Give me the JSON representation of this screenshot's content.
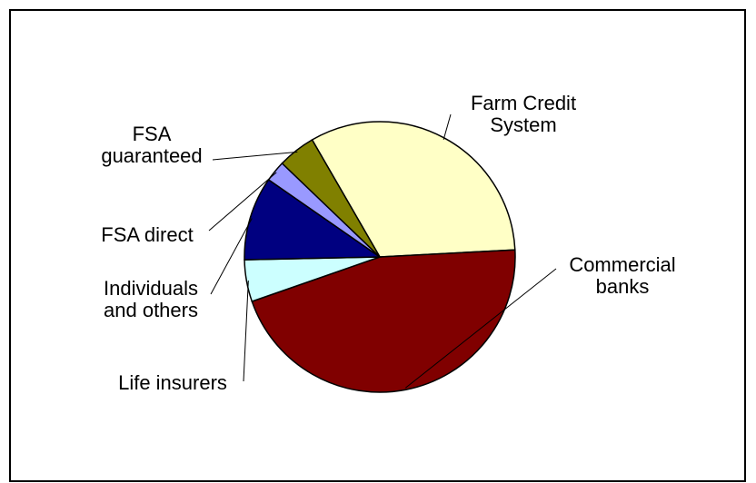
{
  "chart_data": {
    "type": "pie",
    "title": "",
    "slices": [
      {
        "label_lines": [
          "Farm Credit",
          "System"
        ],
        "value": 32.5,
        "color": "#ffffc6"
      },
      {
        "label_lines": [
          "Commercial",
          "banks"
        ],
        "value": 45.5,
        "color": "#800000"
      },
      {
        "label_lines": [
          "Life insurers"
        ],
        "value": 5.0,
        "color": "#ccffff"
      },
      {
        "label_lines": [
          "Individuals",
          "and others"
        ],
        "value": 10.0,
        "color": "#000080"
      },
      {
        "label_lines": [
          "FSA direct"
        ],
        "value": 2.5,
        "color": "#9999ff"
      },
      {
        "label_lines": [
          "FSA",
          "guaranteed"
        ],
        "value": 4.5,
        "color": "#808000"
      }
    ],
    "start_angle_deg": 330,
    "direction": "clockwise",
    "legend": "none"
  }
}
